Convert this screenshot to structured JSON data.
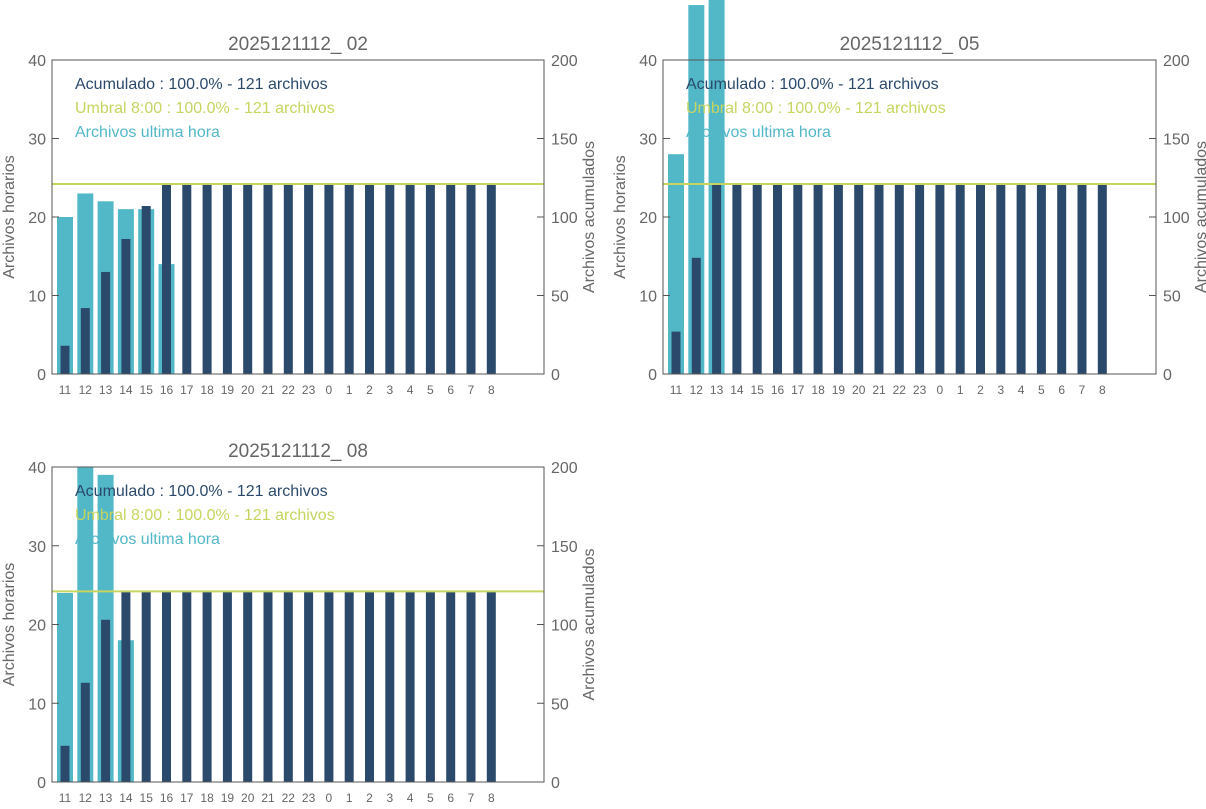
{
  "colors": {
    "hourly": "#52b8c8",
    "cumulative": "#2b4a6b",
    "threshold": "#c8d460",
    "axis": "#555555",
    "text": "#666666"
  },
  "chart_data": [
    {
      "type": "bar",
      "title": "2025121112_ 02",
      "ylabel": "Archivos horarios",
      "y2label": "Archivos acumulados",
      "ylim": [
        0,
        40
      ],
      "y2lim": [
        0,
        200
      ],
      "yticks": [
        "0",
        "10",
        "20",
        "30",
        "40"
      ],
      "y2ticks": [
        "0",
        "50",
        "100",
        "150",
        "200"
      ],
      "categories": [
        "11",
        "12",
        "13",
        "14",
        "15",
        "16",
        "17",
        "18",
        "19",
        "20",
        "21",
        "22",
        "23",
        "0",
        "1",
        "2",
        "3",
        "4",
        "5",
        "6",
        "7",
        "8"
      ],
      "series": [
        {
          "key": "hourly",
          "values": [
            20,
            23,
            22,
            21,
            21,
            14,
            0,
            0,
            0,
            0,
            0,
            0,
            0,
            0,
            0,
            0,
            0,
            0,
            0,
            0,
            0,
            0
          ]
        },
        {
          "key": "cumulative",
          "values": [
            18,
            42,
            65,
            86,
            107,
            121,
            121,
            121,
            121,
            121,
            121,
            121,
            121,
            121,
            121,
            121,
            121,
            121,
            121,
            121,
            121,
            121
          ]
        }
      ],
      "threshold": 121,
      "legend": [
        "Acumulado : 100.0% - 121 archivos",
        "Umbral 8:00 : 100.0% - 121 archivos",
        "Archivos ultima hora"
      ]
    },
    {
      "type": "bar",
      "title": "2025121112_ 05",
      "ylabel": "Archivos horarios",
      "y2label": "Archivos acumulados",
      "ylim": [
        0,
        40
      ],
      "y2lim": [
        0,
        200
      ],
      "yticks": [
        "0",
        "10",
        "20",
        "30",
        "40"
      ],
      "y2ticks": [
        "0",
        "50",
        "100",
        "150",
        "200"
      ],
      "categories": [
        "11",
        "12",
        "13",
        "14",
        "15",
        "16",
        "17",
        "18",
        "19",
        "20",
        "21",
        "22",
        "23",
        "0",
        "1",
        "2",
        "3",
        "4",
        "5",
        "6",
        "7",
        "8"
      ],
      "series": [
        {
          "key": "hourly",
          "values": [
            28,
            47,
            48,
            0,
            0,
            0,
            0,
            0,
            0,
            0,
            0,
            0,
            0,
            0,
            0,
            0,
            0,
            0,
            0,
            0,
            0,
            0
          ]
        },
        {
          "key": "cumulative",
          "values": [
            27,
            74,
            121,
            121,
            121,
            121,
            121,
            121,
            121,
            121,
            121,
            121,
            121,
            121,
            121,
            121,
            121,
            121,
            121,
            121,
            121,
            121
          ]
        }
      ],
      "threshold": 121,
      "legend": [
        "Acumulado : 100.0% - 121 archivos",
        "Umbral 8:00 : 100.0% - 121 archivos",
        "Archivos ultima hora"
      ]
    },
    {
      "type": "bar",
      "title": "2025121112_ 08",
      "ylabel": "Archivos horarios",
      "y2label": "Archivos acumulados",
      "ylim": [
        0,
        40
      ],
      "y2lim": [
        0,
        200
      ],
      "yticks": [
        "0",
        "10",
        "20",
        "30",
        "40"
      ],
      "y2ticks": [
        "0",
        "50",
        "100",
        "150",
        "200"
      ],
      "categories": [
        "11",
        "12",
        "13",
        "14",
        "15",
        "16",
        "17",
        "18",
        "19",
        "20",
        "21",
        "22",
        "23",
        "0",
        "1",
        "2",
        "3",
        "4",
        "5",
        "6",
        "7",
        "8"
      ],
      "series": [
        {
          "key": "hourly",
          "values": [
            24,
            40,
            39,
            18,
            0,
            0,
            0,
            0,
            0,
            0,
            0,
            0,
            0,
            0,
            0,
            0,
            0,
            0,
            0,
            0,
            0,
            0
          ]
        },
        {
          "key": "cumulative",
          "values": [
            23,
            63,
            103,
            121,
            121,
            121,
            121,
            121,
            121,
            121,
            121,
            121,
            121,
            121,
            121,
            121,
            121,
            121,
            121,
            121,
            121,
            121
          ]
        }
      ],
      "threshold": 121,
      "legend": [
        "Acumulado : 100.0% - 121 archivos",
        "Umbral 8:00 : 100.0% - 121 archivos",
        "Archivos ultima hora"
      ]
    }
  ]
}
